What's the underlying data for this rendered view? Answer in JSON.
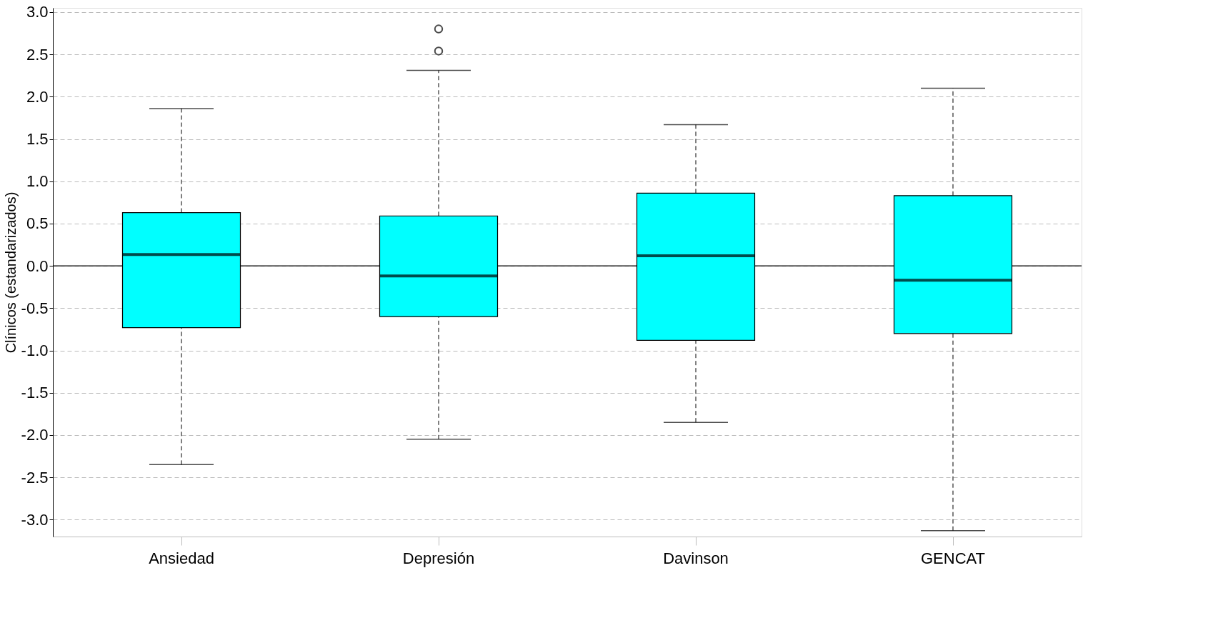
{
  "chart_data": {
    "type": "box",
    "ylabel": "Clínicos (estandarizados)",
    "categories": [
      "Ansiedad",
      "Depresión",
      "Davinson",
      "GENCAT"
    ],
    "boxes": [
      {
        "low": -2.35,
        "q1": -0.73,
        "median": 0.135,
        "q3": 0.63,
        "high": 1.86
      },
      {
        "low": -2.05,
        "q1": -0.6,
        "median": -0.12,
        "q3": 0.59,
        "high": 2.31,
        "outliers": [
          2.54,
          2.8
        ]
      },
      {
        "low": -1.85,
        "q1": -0.88,
        "median": 0.12,
        "q3": 0.86,
        "high": 1.67
      },
      {
        "low": -3.13,
        "q1": -0.8,
        "median": -0.17,
        "q3": 0.83,
        "high": 2.1
      }
    ],
    "color": "#00ffff",
    "ylim": [
      -3.2,
      3.05
    ],
    "yticks": [
      {
        "value": 3,
        "label": "3.0"
      },
      2.5,
      {
        "value": 2,
        "label": "2.0"
      },
      1.5,
      {
        "value": 1,
        "label": "1.0"
      },
      0.5,
      {
        "value": 0,
        "label": "0.0"
      },
      -0.5,
      {
        "value": -1,
        "label": "-1.0"
      },
      -1.5,
      {
        "value": -2,
        "label": "-2.0"
      },
      -2.5,
      {
        "value": -3,
        "label": "-3.0"
      }
    ],
    "grid": "y",
    "ref_lines": [
      {
        "axis": "y",
        "value": 0,
        "color": "#000000"
      }
    ]
  }
}
